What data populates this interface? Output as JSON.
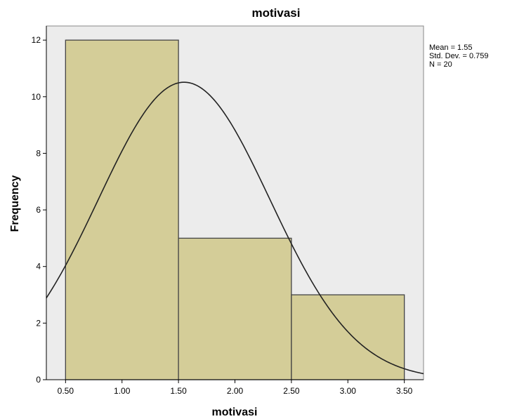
{
  "chart_data": {
    "type": "bar",
    "title": "motivasi",
    "xlabel": "motivasi",
    "ylabel": "Frequency",
    "bins": [
      {
        "start": 0.5,
        "end": 1.5,
        "count": 12
      },
      {
        "start": 1.5,
        "end": 2.5,
        "count": 5
      },
      {
        "start": 2.5,
        "end": 3.5,
        "count": 3
      }
    ],
    "x_ticks": [
      "0.50",
      "1.00",
      "1.50",
      "2.00",
      "2.50",
      "3.00",
      "3.50"
    ],
    "y_ticks": [
      "0",
      "2",
      "4",
      "6",
      "8",
      "10",
      "12"
    ],
    "xlim": [
      0.33,
      3.67
    ],
    "ylim": [
      0,
      12.5
    ],
    "normal_curve": {
      "mean": 1.55,
      "std_dev": 0.759,
      "n": 20,
      "bin_width": 1.0
    },
    "stats_text": [
      "Mean = 1.55",
      "Std. Dev. = 0.759",
      "N = 20"
    ],
    "grid": false,
    "colors": {
      "plot_background": "#ececec",
      "bar_fill": "#d4cd98",
      "bar_stroke": "#444444",
      "curve": "#222222"
    }
  }
}
